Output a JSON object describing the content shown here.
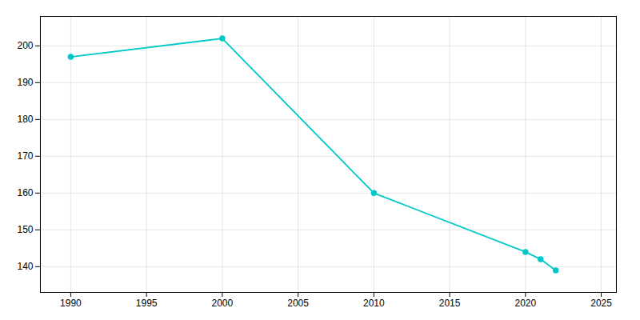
{
  "chart_data": {
    "type": "line",
    "x": [
      1990,
      2000,
      2010,
      2020,
      2021,
      2022
    ],
    "values": [
      197,
      202,
      160,
      144,
      142,
      139
    ],
    "color": "#00c8c8",
    "marker": "circle",
    "xlim": [
      1988,
      2026
    ],
    "ylim": [
      133,
      208
    ],
    "xticks": [
      1990,
      1995,
      2000,
      2005,
      2010,
      2015,
      2020,
      2025
    ],
    "yticks": [
      140,
      150,
      160,
      170,
      180,
      190,
      200
    ],
    "grid": true
  }
}
